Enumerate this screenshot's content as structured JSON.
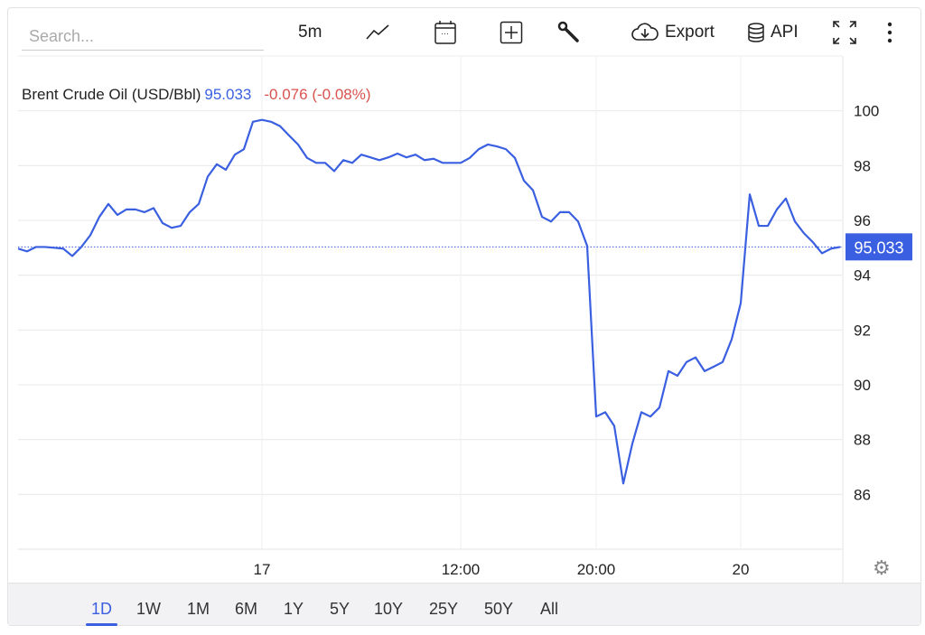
{
  "toolbar": {
    "search_placeholder": "Search...",
    "interval": "5m",
    "export_label": "Export",
    "api_label": "API",
    "icons": [
      "line-chart-icon",
      "calendar-icon",
      "plus-box-icon",
      "wrench-icon",
      "cloud-download-icon",
      "database-icon",
      "fullscreen-icon",
      "more-vertical-icon"
    ]
  },
  "legend": {
    "name": "Brent Crude Oil (USD/Bbl)",
    "value": "95.033",
    "change": "-0.076 (-0.08%)"
  },
  "colors": {
    "line": "#3a5fe0",
    "change": "#d9534f",
    "price_tag": "#3a5fe0"
  },
  "price_tag": "95.033",
  "ranges": [
    "1D",
    "1W",
    "1M",
    "6M",
    "1Y",
    "5Y",
    "10Y",
    "25Y",
    "50Y",
    "All"
  ],
  "active_range": "1D",
  "chart_data": {
    "type": "line",
    "title": "",
    "xlabel": "",
    "ylabel": "",
    "ylim": [
      84,
      102
    ],
    "y_ticks": [
      86,
      88,
      90,
      92,
      94,
      96,
      98,
      100
    ],
    "y_axis_position": "right",
    "grid": true,
    "last_value": 95.033,
    "x_ticks": [
      {
        "label": "17",
        "index": 27
      },
      {
        "label": "12:00",
        "index": 49
      },
      {
        "label": "20:00",
        "index": 64
      },
      {
        "label": "20",
        "index": 80
      }
    ],
    "series": [
      {
        "values": [
          94.97,
          94.87,
          95.03,
          95.03,
          95.0,
          94.97,
          94.7,
          95.03,
          95.46,
          96.13,
          96.6,
          96.2,
          96.4,
          96.4,
          96.3,
          96.45,
          95.9,
          95.73,
          95.8,
          96.3,
          96.6,
          97.6,
          98.05,
          97.85,
          98.4,
          98.6,
          99.6,
          99.67,
          99.6,
          99.44,
          99.1,
          98.77,
          98.28,
          98.1,
          98.1,
          97.8,
          98.2,
          98.1,
          98.4,
          98.3,
          98.2,
          98.3,
          98.44,
          98.3,
          98.4,
          98.2,
          98.25,
          98.1,
          98.1,
          98.1,
          98.28,
          98.6,
          98.77,
          98.7,
          98.6,
          98.28,
          97.45,
          97.1,
          96.13,
          95.96,
          96.3,
          96.3,
          95.96,
          95.07,
          88.84,
          89.0,
          88.5,
          86.4,
          87.85,
          89.0,
          88.84,
          89.17,
          90.5,
          90.33,
          90.83,
          91.0,
          90.5,
          90.66,
          90.83,
          91.66,
          92.98,
          96.95,
          95.8,
          95.8,
          96.4,
          96.8,
          95.96,
          95.53,
          95.2,
          94.8,
          94.97,
          95.03
        ]
      }
    ]
  }
}
